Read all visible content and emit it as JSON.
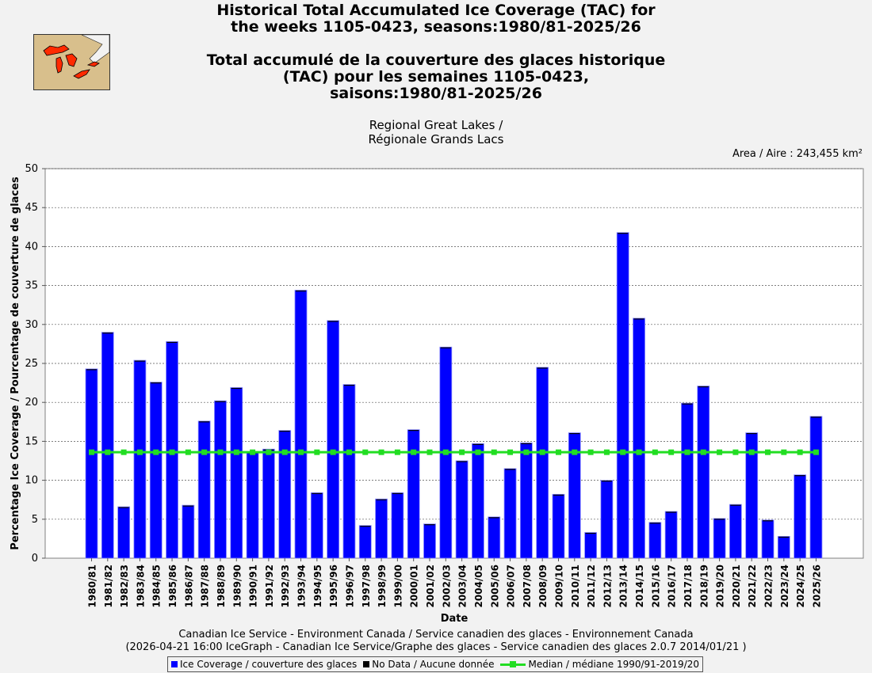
{
  "header": {
    "title_en_line1": "Historical Total Accumulated Ice Coverage (TAC) for",
    "title_en_line2": "the weeks 1105-0423, seasons:1980/81-2025/26",
    "title_fr_line1": "Total accumulé de la couverture des glaces historique",
    "title_fr_line2": "(TAC) pour les semaines 1105-0423,",
    "title_fr_line3": "saisons:1980/81-2025/26",
    "region_line1": "Regional Great Lakes /",
    "region_line2": "Régionale Grands Lacs",
    "area": "Area / Aire : 243,455 km²"
  },
  "footer": {
    "line1": "Canadian Ice Service - Environment Canada / Service canadien des glaces - Environnement Canada",
    "line2": "(2026-04-21 16:00 IceGraph - Canadian Ice Service/Graphe des glaces - Service canadien des glaces 2.0.7 2014/01/21 )"
  },
  "legend": {
    "ice": "Ice Coverage / couverture des glaces",
    "nodata": "No Data / Aucune donnée",
    "median": "Median / médiane 1990/91-2019/20"
  },
  "colors": {
    "bar": "#0000ff",
    "median": "#22dd22",
    "nodata": "#000000",
    "map_land": "#d8bf8c",
    "map_water": "#ff2a00"
  },
  "icons": {
    "map": "great-lakes-map-icon"
  },
  "chart_data": {
    "type": "bar",
    "xlabel": "Date",
    "ylabel": "Percentage Ice Coverage / Pourcentage de couverture de glaces",
    "ylim": [
      0,
      50
    ],
    "yticks": [
      0,
      5,
      10,
      15,
      20,
      25,
      30,
      35,
      40,
      45,
      50
    ],
    "grid": true,
    "categories": [
      "1980/81",
      "1981/82",
      "1982/83",
      "1983/84",
      "1984/85",
      "1985/86",
      "1986/87",
      "1987/88",
      "1988/89",
      "1989/90",
      "1990/91",
      "1991/92",
      "1992/93",
      "1993/94",
      "1994/95",
      "1995/96",
      "1996/97",
      "1997/98",
      "1998/99",
      "1999/00",
      "2000/01",
      "2001/02",
      "2002/03",
      "2003/04",
      "2004/05",
      "2005/06",
      "2006/07",
      "2007/08",
      "2008/09",
      "2009/10",
      "2010/11",
      "2011/12",
      "2012/13",
      "2013/14",
      "2014/15",
      "2015/16",
      "2016/17",
      "2017/18",
      "2018/19",
      "2019/20",
      "2020/21",
      "2021/22",
      "2022/23",
      "2023/24",
      "2024/25",
      "2025/26"
    ],
    "series": [
      {
        "name": "Ice Coverage / couverture des glaces",
        "values": [
          24.3,
          29.0,
          6.6,
          25.4,
          22.6,
          27.8,
          6.8,
          17.6,
          20.2,
          21.9,
          13.6,
          14.0,
          16.4,
          34.4,
          8.4,
          30.5,
          22.3,
          4.2,
          7.6,
          8.4,
          16.5,
          4.4,
          27.1,
          12.5,
          14.7,
          5.3,
          11.5,
          14.8,
          24.5,
          8.2,
          16.1,
          3.3,
          10.0,
          41.8,
          30.8,
          4.6,
          6.0,
          19.9,
          22.1,
          5.1,
          6.9,
          16.1,
          4.9,
          2.8,
          10.7,
          18.2
        ]
      },
      {
        "name": "Median / médiane 1990/91-2019/20",
        "values": [
          13.6,
          13.6,
          13.6,
          13.6,
          13.6,
          13.6,
          13.6,
          13.6,
          13.6,
          13.6,
          13.6,
          13.6,
          13.6,
          13.6,
          13.6,
          13.6,
          13.6,
          13.6,
          13.6,
          13.6,
          13.6,
          13.6,
          13.6,
          13.6,
          13.6,
          13.6,
          13.6,
          13.6,
          13.6,
          13.6,
          13.6,
          13.6,
          13.6,
          13.6,
          13.6,
          13.6,
          13.6,
          13.6,
          13.6,
          13.6,
          13.6,
          13.6,
          13.6,
          13.6,
          13.6,
          13.6
        ]
      }
    ]
  }
}
